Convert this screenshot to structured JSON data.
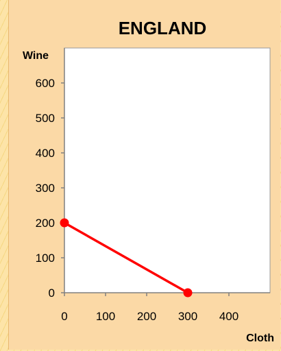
{
  "chart_data": {
    "type": "line",
    "title": "ENGLAND",
    "xlabel": "Cloth",
    "ylabel": "Wine",
    "xlim": [
      0,
      500
    ],
    "ylim": [
      0,
      700
    ],
    "x_ticks": [
      0,
      100,
      200,
      300,
      400
    ],
    "y_ticks": [
      0,
      100,
      200,
      300,
      400,
      500,
      600
    ],
    "grid": false,
    "series": [
      {
        "color": "#ff0000",
        "points": [
          {
            "x": 0,
            "y": 200
          },
          {
            "x": 300,
            "y": 0
          }
        ]
      }
    ]
  }
}
